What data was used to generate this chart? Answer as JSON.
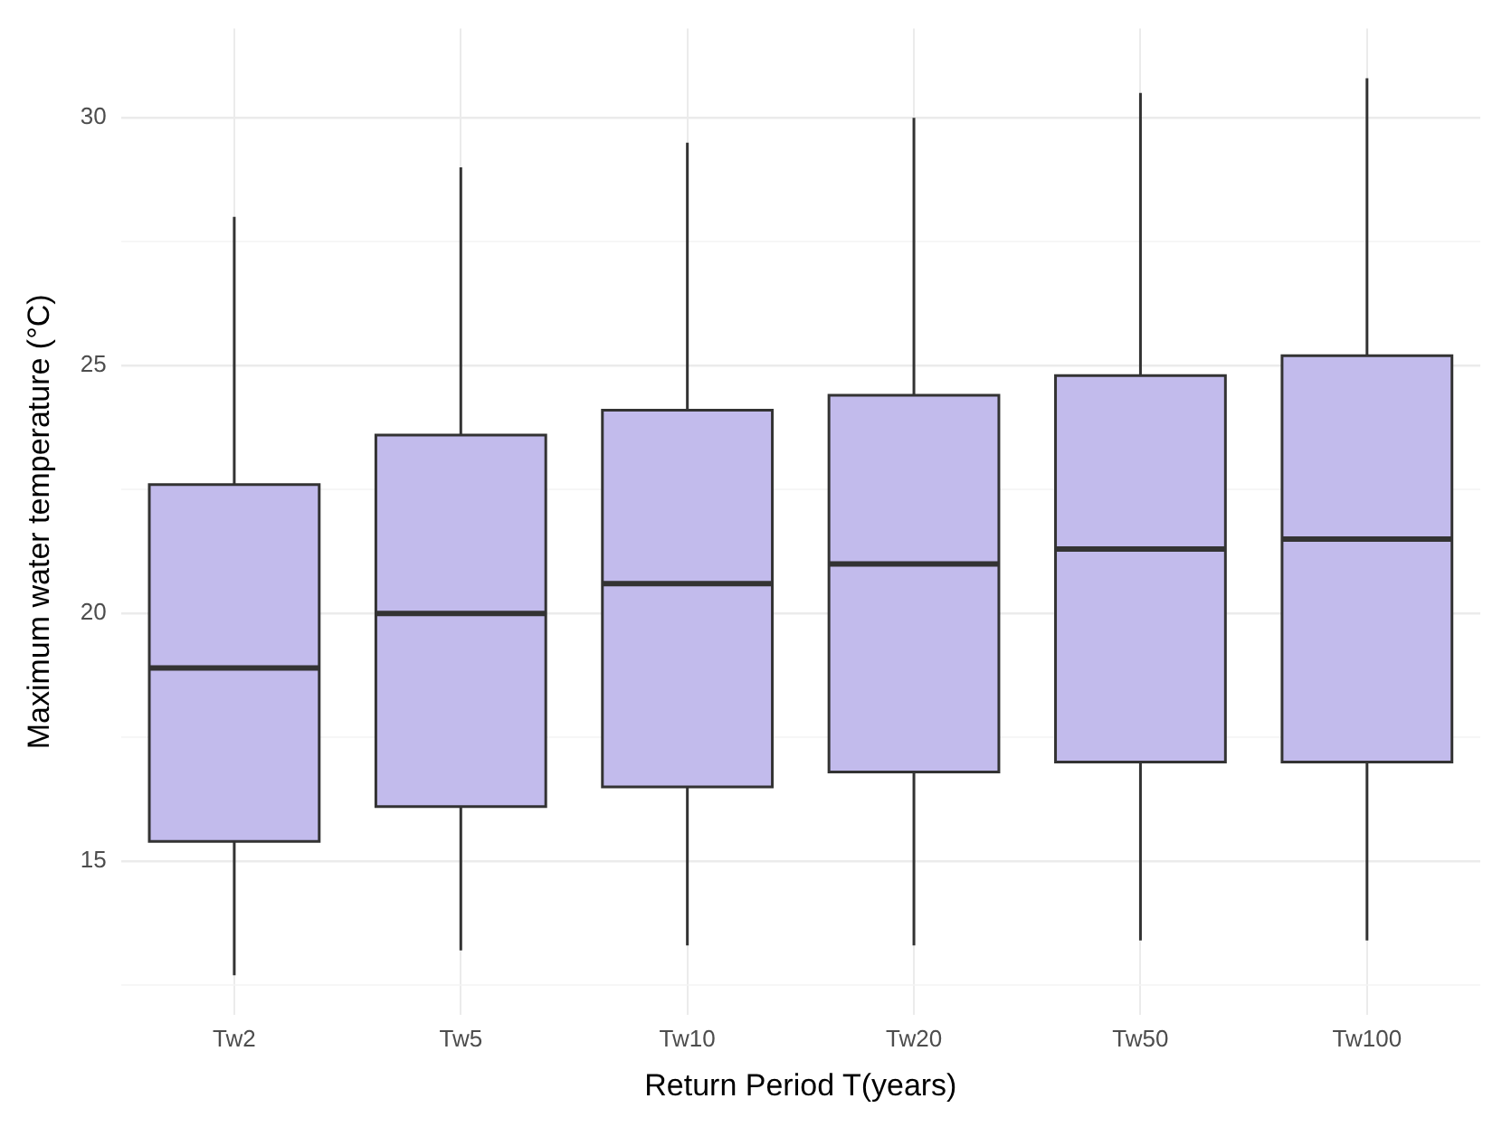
{
  "chart_data": {
    "type": "box",
    "xlabel": "Return Period T(years)",
    "ylabel": "Maximum water temperature (°C)",
    "categories": [
      "Tw2",
      "Tw5",
      "Tw10",
      "Tw20",
      "Tw50",
      "Tw100"
    ],
    "series": [
      {
        "color": "#c2bbec",
        "boxes": [
          {
            "low": 12.7,
            "q1": 15.4,
            "median": 18.9,
            "q3": 22.6,
            "high": 28.0
          },
          {
            "low": 13.2,
            "q1": 16.1,
            "median": 20.0,
            "q3": 23.6,
            "high": 29.0
          },
          {
            "low": 13.3,
            "q1": 16.5,
            "median": 20.6,
            "q3": 24.1,
            "high": 29.5
          },
          {
            "low": 13.3,
            "q1": 16.8,
            "median": 21.0,
            "q3": 24.4,
            "high": 30.0
          },
          {
            "low": 13.4,
            "q1": 17.0,
            "median": 21.3,
            "q3": 24.8,
            "high": 30.5
          },
          {
            "low": 13.4,
            "q1": 17.0,
            "median": 21.5,
            "q3": 25.2,
            "high": 30.8
          }
        ]
      }
    ],
    "ylim": [
      11.9,
      31.8
    ],
    "yticks": [
      {
        "value": 12.5,
        "label": null
      },
      15,
      {
        "value": 17.5,
        "label": null
      },
      20,
      {
        "value": 22.5,
        "label": null
      },
      25,
      {
        "value": 27.5,
        "label": null
      },
      30
    ],
    "grid": true,
    "legend": false
  }
}
